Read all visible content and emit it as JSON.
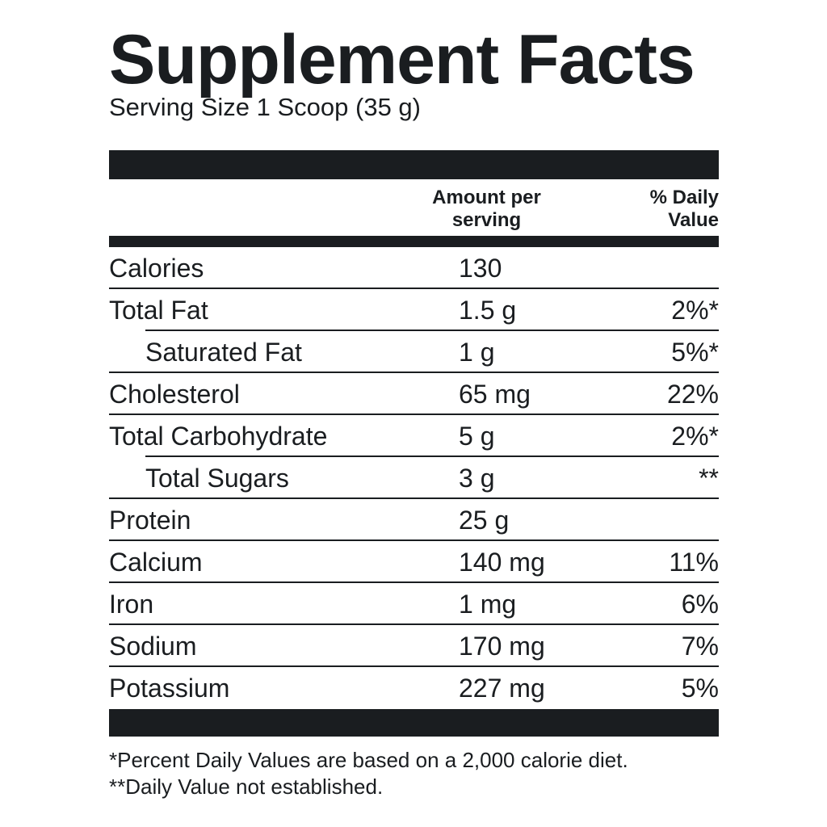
{
  "label": {
    "title": "Supplement Facts",
    "serving_size": "Serving Size 1 Scoop (35 g)",
    "header": {
      "amount_line1": "Amount per",
      "amount_line2": "serving",
      "dv_line1": "% Daily",
      "dv_line2": "Value"
    },
    "rows": [
      {
        "name": "Calories",
        "amount": "130",
        "dv": ""
      },
      {
        "name": "Total Fat",
        "amount": "1.5 g",
        "dv": "2%*"
      },
      {
        "name": "Saturated Fat",
        "amount": "1 g",
        "dv": "5%*"
      },
      {
        "name": "Cholesterol",
        "amount": "65 mg",
        "dv": "22%"
      },
      {
        "name": "Total Carbohydrate",
        "amount": "5 g",
        "dv": "2%*"
      },
      {
        "name": "Total Sugars",
        "amount": "3 g",
        "dv": "**"
      },
      {
        "name": "Protein",
        "amount": "25 g",
        "dv": ""
      },
      {
        "name": "Calcium",
        "amount": "140 mg",
        "dv": "11%"
      },
      {
        "name": "Iron",
        "amount": "1 mg",
        "dv": "6%"
      },
      {
        "name": "Sodium",
        "amount": "170 mg",
        "dv": "7%"
      },
      {
        "name": "Potassium",
        "amount": "227 mg",
        "dv": "5%"
      }
    ],
    "footnote_1": "*Percent Daily Values are based on a 2,000 calorie diet.",
    "footnote_2": "**Daily Value not established."
  },
  "colors": {
    "ink": "#1a1d20",
    "background": "#ffffff"
  }
}
